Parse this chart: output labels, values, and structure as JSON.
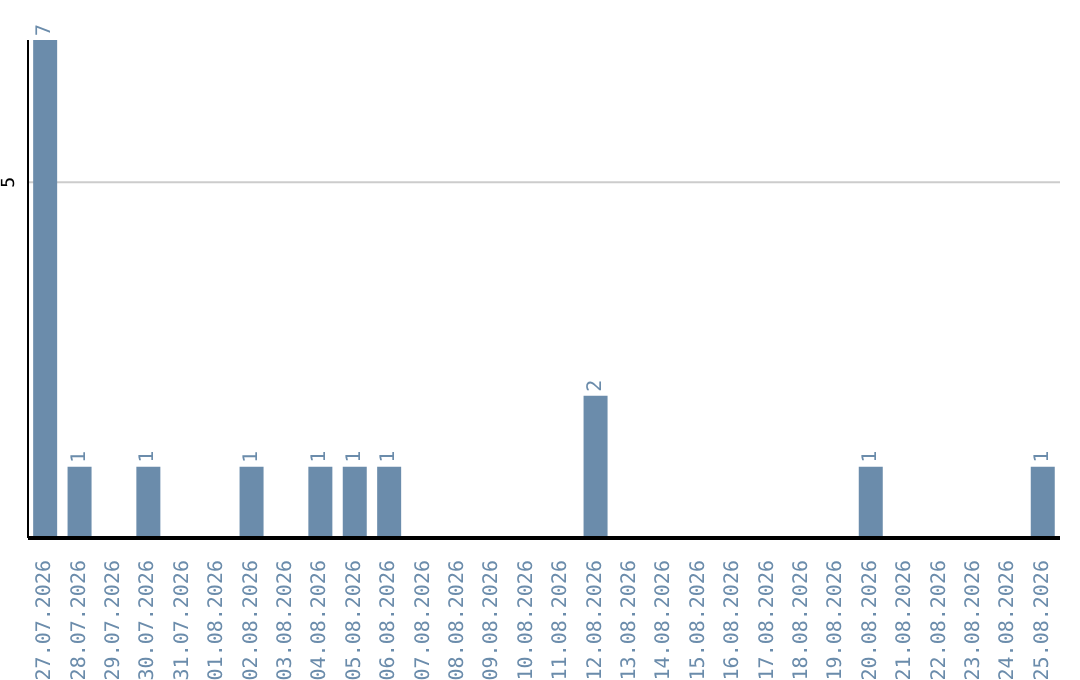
{
  "chart_data": {
    "type": "bar",
    "categories": [
      "27.07.2026",
      "28.07.2026",
      "29.07.2026",
      "30.07.2026",
      "31.07.2026",
      "01.08.2026",
      "02.08.2026",
      "03.08.2026",
      "04.08.2026",
      "05.08.2026",
      "06.08.2026",
      "07.08.2026",
      "08.08.2026",
      "09.08.2026",
      "10.08.2026",
      "11.08.2026",
      "12.08.2026",
      "13.08.2026",
      "14.08.2026",
      "15.08.2026",
      "16.08.2026",
      "17.08.2026",
      "18.08.2026",
      "19.08.2026",
      "20.08.2026",
      "21.08.2026",
      "22.08.2026",
      "23.08.2026",
      "24.08.2026",
      "25.08.2026"
    ],
    "values": [
      7,
      1,
      0,
      1,
      0,
      0,
      1,
      0,
      1,
      1,
      1,
      0,
      0,
      0,
      0,
      0,
      2,
      0,
      0,
      0,
      0,
      0,
      0,
      0,
      1,
      0,
      0,
      0,
      0,
      1
    ],
    "value_labels": [
      "7",
      "1",
      null,
      "1",
      null,
      null,
      "1",
      null,
      "1",
      "1",
      "1",
      null,
      null,
      null,
      null,
      null,
      "2",
      null,
      null,
      null,
      null,
      null,
      null,
      null,
      "1",
      null,
      null,
      null,
      null,
      "1"
    ],
    "color": "#6b8cab",
    "ylim": [
      0,
      7
    ],
    "yticks": [
      5
    ],
    "grid": "y"
  }
}
